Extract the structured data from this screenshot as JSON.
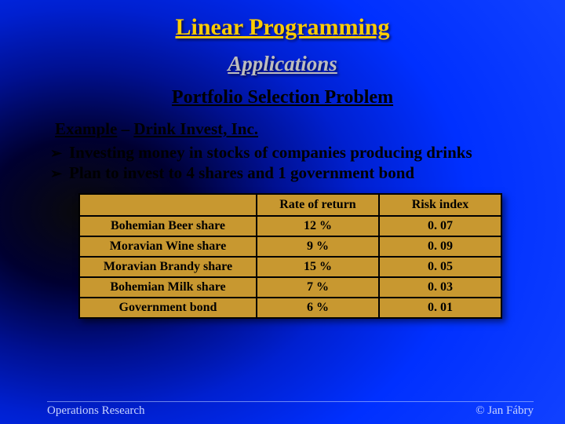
{
  "title": "Linear Programming",
  "subtitle": "Applications",
  "section": "Portfolio Selection Problem",
  "example_label": "Example",
  "example_name": "Drink Invest, Inc.",
  "bullets": [
    "Investing money in stocks of companies producing drinks",
    "Plan to invest to 4 shares and 1 government bond"
  ],
  "table": {
    "columns": [
      "",
      "Rate of return",
      "Risk index"
    ],
    "rows": [
      [
        "Bohemian Beer share",
        "12 %",
        "0. 07"
      ],
      [
        "Moravian Wine share",
        "9 %",
        "0. 09"
      ],
      [
        "Moravian Brandy share",
        "15 %",
        "0. 05"
      ],
      [
        "Bohemian Milk share",
        "7 %",
        "0. 03"
      ],
      [
        "Government bond",
        "6 %",
        "0. 01"
      ]
    ],
    "background_color": "#c89830",
    "border_color": "#000000",
    "font_size": 16,
    "font_weight": "bold"
  },
  "footer": {
    "left": "Operations Research",
    "right": "© Jan Fábry"
  },
  "colors": {
    "title": "#ffcc00",
    "subtitle": "#bdbdbd",
    "body_text": "#000000",
    "footer_text": "#c8d4ff",
    "bg_gradient_inner": "#000000",
    "bg_gradient_outer": "#1040ff"
  },
  "typography": {
    "family": "Times New Roman",
    "title_size": 30,
    "subtitle_size": 27,
    "section_size": 24,
    "body_size": 21,
    "footer_size": 15
  },
  "bullet_glyph": "➢"
}
